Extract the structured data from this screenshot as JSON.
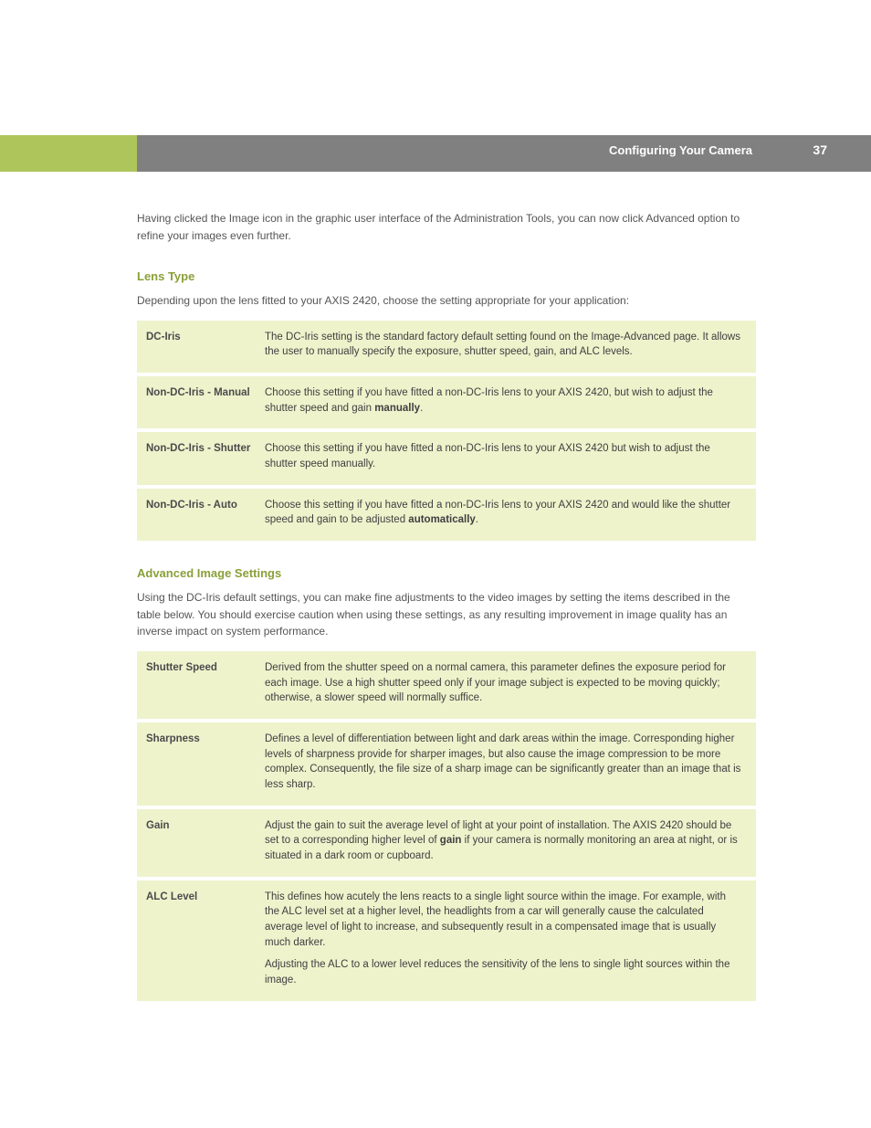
{
  "header": {
    "title": "Configuring Your Camera",
    "page_number": "37",
    "accent_color": "#adc55b",
    "bar_color": "#808080",
    "text_color": "#ffffff"
  },
  "intro": "Having clicked the Image icon in the graphic user interface of the Administration Tools, you can now click Advanced option to refine your images even further.",
  "section1": {
    "heading": "Lens Type",
    "sub": "Depending upon the lens fitted to your AXIS 2420, choose the setting appropriate for your application:",
    "rows": [
      {
        "label": "DC-Iris",
        "desc": "The DC-Iris setting is the standard factory default setting found on the Image-Advanced page. It allows the user to manually specify the exposure, shutter speed, gain, and ALC levels."
      },
      {
        "label": "Non-DC-Iris - Manual",
        "desc": "Choose this setting if you have fitted a non-DC-Iris lens to your AXIS 2420, but wish to adjust the shutter speed and gain <b>manually</b>."
      },
      {
        "label": "Non-DC-Iris - Shutter",
        "desc": "Choose this setting if you have fitted a non-DC-Iris lens to your AXIS 2420 but wish to adjust the shutter speed manually."
      },
      {
        "label": "Non-DC-Iris - Auto",
        "desc": "Choose this setting if you have fitted a non-DC-Iris lens to your AXIS 2420 and would like the shutter speed and gain to be adjusted <b>automatically</b>."
      }
    ]
  },
  "section2": {
    "heading": "Advanced Image Settings",
    "sub": "Using the DC-Iris default settings, you can make fine adjustments to the video images by setting the items described in the table below. You should exercise caution when using these settings, as any resulting improvement in image quality has an inverse impact on system performance.",
    "rows": [
      {
        "label": "Shutter Speed",
        "desc": "Derived from the shutter speed on a normal camera, this parameter defines the exposure period for each image. Use a high shutter speed only if your image subject is expected to be moving quickly; otherwise, a slower speed will normally suffice."
      },
      {
        "label": "Sharpness",
        "desc": "Defines a level of differentiation between light and dark areas within the image. Corresponding higher levels of sharpness provide for sharper images, but also cause the image compression to be more complex. Consequently, the file size of a sharp image can be significantly greater than an image that is less sharp."
      },
      {
        "label": "Gain",
        "desc": "Adjust the gain to suit the average level of light at your point of installation. The AXIS 2420 should be set to a corresponding higher level of <b>gain</b> if your camera is normally monitoring an area at night, or is situated in a dark room or cupboard."
      },
      {
        "label": "ALC Level",
        "desc": "<p>This defines how acutely the lens reacts to a single light source within the image. For example, with the ALC level set at a higher level, the headlights from a car will generally cause the calculated average level of light to increase, and subsequently result in a compensated image that is usually much darker.</p><p>Adjusting the ALC to a lower level reduces the sensitivity of the lens to single light sources within the image.</p>"
      }
    ]
  },
  "colors": {
    "row_bg": "#eef3cc",
    "heading_color": "#8aa038",
    "body_text": "#555555",
    "label_text": "#4b4b4b"
  }
}
